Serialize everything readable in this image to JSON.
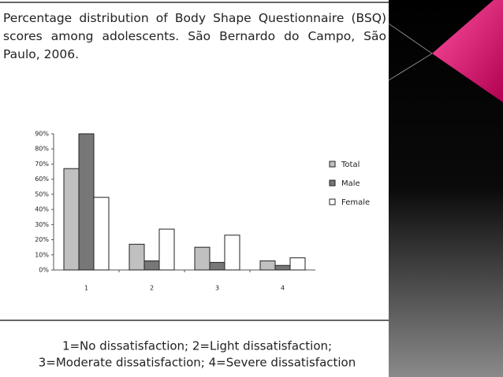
{
  "chart_data": {
    "type": "bar",
    "title": "Percentage distribution of Body Shape Questionnaire (BSQ) scores among adolescents. São Bernardo do Campo, São Paulo, 2006.",
    "categories": [
      "1",
      "2",
      "3",
      "4"
    ],
    "series": [
      {
        "name": "Total",
        "color": "#c0c0c0",
        "values": [
          67,
          17,
          15,
          6
        ]
      },
      {
        "name": "Male",
        "color": "#777777",
        "values": [
          90,
          6,
          5,
          3
        ]
      },
      {
        "name": "Female",
        "color": "#ffffff",
        "values": [
          48,
          27,
          23,
          8
        ]
      }
    ],
    "ylim": [
      0,
      90
    ],
    "yticks": [
      {
        "value": 0,
        "label": "0%"
      },
      {
        "value": 10,
        "label": "10%"
      },
      {
        "value": 20,
        "label": "20%"
      },
      {
        "value": 30,
        "label": "30%"
      },
      {
        "value": 40,
        "label": "40%"
      },
      {
        "value": 50,
        "label": "50%"
      },
      {
        "value": 60,
        "label": "60%"
      },
      {
        "value": 70,
        "label": "70%"
      },
      {
        "value": 80,
        "label": "80%"
      },
      {
        "value": 90,
        "label": "90%"
      }
    ],
    "legend": "right",
    "annotations": [
      "1=No dissatisfaction; 2=Light dissatisfaction;",
      "3=Moderate dissatisfaction; 4=Severe dissatisfaction"
    ]
  }
}
